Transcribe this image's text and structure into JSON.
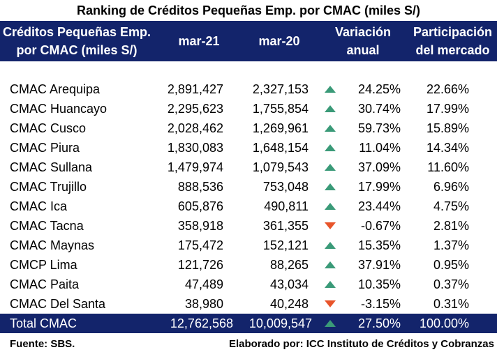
{
  "title": "Ranking de Créditos Pequeñas Emp. por CMAC (miles S/)",
  "header": {
    "name_line1": "Créditos Pequeñas Emp.",
    "name_line2": "por CMAC (miles S/)",
    "col1": "mar-21",
    "col2": "mar-20",
    "var_line1": "Variación",
    "var_line2": "anual",
    "part_line1": "Participación",
    "part_line2": "del mercado"
  },
  "colors": {
    "header_bg": "#13246b",
    "up_arrow": "#3a9a78",
    "down_arrow": "#e8542a"
  },
  "rows": [
    {
      "name": "CMAC Arequipa",
      "mar21": "2,891,427",
      "mar20": "2,327,153",
      "trend": "up",
      "variation": "24.25%",
      "share": "22.66%"
    },
    {
      "name": "CMAC Huancayo",
      "mar21": "2,295,623",
      "mar20": "1,755,854",
      "trend": "up",
      "variation": "30.74%",
      "share": "17.99%"
    },
    {
      "name": "CMAC Cusco",
      "mar21": "2,028,462",
      "mar20": "1,269,961",
      "trend": "up",
      "variation": "59.73%",
      "share": "15.89%"
    },
    {
      "name": "CMAC Piura",
      "mar21": "1,830,083",
      "mar20": "1,648,154",
      "trend": "up",
      "variation": "11.04%",
      "share": "14.34%"
    },
    {
      "name": "CMAC Sullana",
      "mar21": "1,479,974",
      "mar20": "1,079,543",
      "trend": "up",
      "variation": "37.09%",
      "share": "11.60%"
    },
    {
      "name": "CMAC Trujillo",
      "mar21": "888,536",
      "mar20": "753,048",
      "trend": "up",
      "variation": "17.99%",
      "share": "6.96%"
    },
    {
      "name": "CMAC Ica",
      "mar21": "605,876",
      "mar20": "490,811",
      "trend": "up",
      "variation": "23.44%",
      "share": "4.75%"
    },
    {
      "name": "CMAC Tacna",
      "mar21": "358,918",
      "mar20": "361,355",
      "trend": "down",
      "variation": "-0.67%",
      "share": "2.81%"
    },
    {
      "name": "CMAC Maynas",
      "mar21": "175,472",
      "mar20": "152,121",
      "trend": "up",
      "variation": "15.35%",
      "share": "1.37%"
    },
    {
      "name": "CMCP Lima",
      "mar21": "121,726",
      "mar20": "88,265",
      "trend": "up",
      "variation": "37.91%",
      "share": "0.95%"
    },
    {
      "name": "CMAC Paita",
      "mar21": "47,489",
      "mar20": "43,034",
      "trend": "up",
      "variation": "10.35%",
      "share": "0.37%"
    },
    {
      "name": "CMAC Del Santa",
      "mar21": "38,980",
      "mar20": "40,248",
      "trend": "down",
      "variation": "-3.15%",
      "share": "0.31%"
    }
  ],
  "total": {
    "name": "Total CMAC",
    "mar21": "12,762,568",
    "mar20": "10,009,547",
    "trend": "up",
    "variation": "27.50%",
    "share": "100.00%"
  },
  "footer": {
    "source": "Fuente: SBS.",
    "credit": "Elaborado por: ICC Instituto de Créditos y Cobranzas"
  }
}
